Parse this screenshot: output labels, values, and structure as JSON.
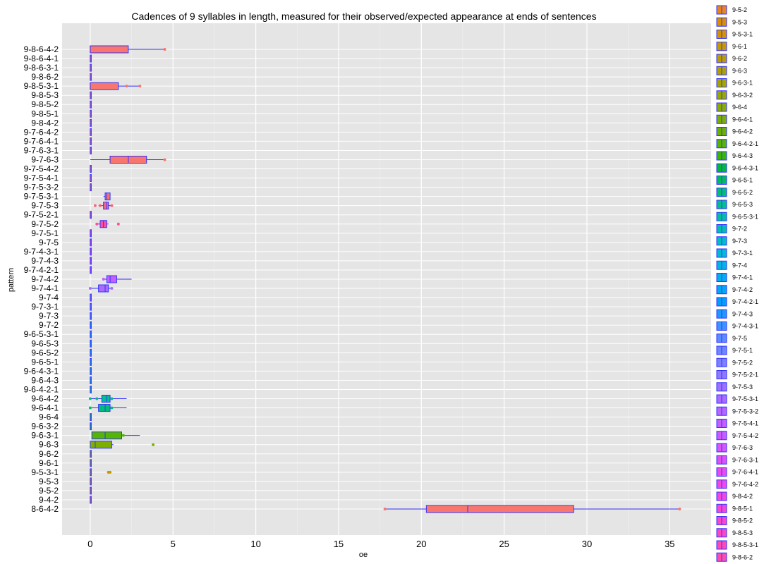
{
  "chart_data": {
    "type": "boxplot",
    "orientation": "horizontal",
    "title": "Cadences of 9 syllables in length, measured for their observed/expected appearance at ends of sentences",
    "xlabel": "oe",
    "ylabel": "pattern",
    "xlim": [
      -1.7,
      37.5
    ],
    "x_ticks": [
      0,
      5,
      10,
      15,
      20,
      25,
      30,
      35
    ],
    "grid": true,
    "legend_position": "right",
    "categories": [
      "8-6-4-2",
      "9-4-2",
      "9-5-2",
      "9-5-3",
      "9-5-3-1",
      "9-6-1",
      "9-6-2",
      "9-6-3",
      "9-6-3-1",
      "9-6-3-2",
      "9-6-4",
      "9-6-4-1",
      "9-6-4-2",
      "9-6-4-2-1",
      "9-6-4-3",
      "9-6-4-3-1",
      "9-6-5-1",
      "9-6-5-2",
      "9-6-5-3",
      "9-6-5-3-1",
      "9-7-2",
      "9-7-3",
      "9-7-3-1",
      "9-7-4",
      "9-7-4-1",
      "9-7-4-2",
      "9-7-4-2-1",
      "9-7-4-3",
      "9-7-4-3-1",
      "9-7-5",
      "9-7-5-1",
      "9-7-5-2",
      "9-7-5-2-1",
      "9-7-5-3",
      "9-7-5-3-1",
      "9-7-5-3-2",
      "9-7-5-4-1",
      "9-7-5-4-2",
      "9-7-6-3",
      "9-7-6-3-1",
      "9-7-6-4-1",
      "9-7-6-4-2",
      "9-8-4-2",
      "9-8-5-1",
      "9-8-5-2",
      "9-8-5-3",
      "9-8-5-3-1",
      "9-8-6-2",
      "9-8-6-3-1",
      "9-8-6-4-1",
      "9-8-6-4-2"
    ],
    "colors": [
      "#f8766d",
      "#f3794c",
      "#e7851e",
      "#d89000",
      "#c49a00",
      "#b0a100",
      "#99a800",
      "#7daf00",
      "#55b500",
      "#00ba38",
      "#00bc5c",
      "#00be76",
      "#00c08b",
      "#00c19f",
      "#00c0b1",
      "#00bec3",
      "#00bbd3",
      "#00b6e0",
      "#00b0ec",
      "#00a9f4",
      "#009ff9",
      "#3b94ff",
      "#6d87ff",
      "#9178ff",
      "#ad6aff",
      "#c55eff",
      "#d855f6",
      "#e94bea",
      "#f446db",
      "#fb46c9",
      "#ff49b4",
      "#ff509e",
      "#ff5a88",
      "#fc6579",
      "#f8766d",
      "#f8766d",
      "#f8766d",
      "#f8766d",
      "#f8766d",
      "#f8766d",
      "#f8766d",
      "#f8766d",
      "#f8766d",
      "#f8766d",
      "#f8766d",
      "#f8766d",
      "#f8766d",
      "#f8766d",
      "#f8766d",
      "#f8766d",
      "#f8766d"
    ],
    "boxes": {
      "8-6-4-2": {
        "min": 17.8,
        "q1": 20.3,
        "median": 22.8,
        "q3": 29.2,
        "max": 35.6,
        "outliers": [
          17.8,
          35.6
        ]
      },
      "9-4-2": {
        "min": 0,
        "q1": 0,
        "median": 0,
        "q3": 0,
        "max": 0,
        "outliers": []
      },
      "9-5-2": {
        "min": 0,
        "q1": 0,
        "median": 0,
        "q3": 0,
        "max": 0,
        "outliers": []
      },
      "9-5-3": {
        "min": 0,
        "q1": 0,
        "median": 0,
        "q3": 0,
        "max": 0,
        "outliers": []
      },
      "9-5-3-1": {
        "min": 0,
        "q1": 0,
        "median": 0,
        "q3": 0,
        "max": 0,
        "outliers": [
          1.1,
          1.2
        ]
      },
      "9-6-1": {
        "min": 0,
        "q1": 0,
        "median": 0,
        "q3": 0,
        "max": 0,
        "outliers": []
      },
      "9-6-2": {
        "min": 0,
        "q1": 0,
        "median": 0,
        "q3": 0,
        "max": 0,
        "outliers": []
      },
      "9-6-3": {
        "min": 0,
        "q1": 0,
        "median": 0.3,
        "q3": 1.3,
        "max": 1.4,
        "outliers": [
          3.8
        ]
      },
      "9-6-3-1": {
        "min": 0.1,
        "q1": 0.1,
        "median": 0.9,
        "q3": 1.9,
        "max": 3.0,
        "outliers": [
          2.0
        ]
      },
      "9-6-3-2": {
        "min": 0,
        "q1": 0,
        "median": 0,
        "q3": 0,
        "max": 0,
        "outliers": []
      },
      "9-6-4": {
        "min": 0,
        "q1": 0,
        "median": 0,
        "q3": 0,
        "max": 0,
        "outliers": []
      },
      "9-6-4-1": {
        "min": 0,
        "q1": 0.5,
        "median": 0.9,
        "q3": 1.2,
        "max": 2.2,
        "outliers": [
          0.0,
          1.3
        ]
      },
      "9-6-4-2": {
        "min": 0,
        "q1": 0.7,
        "median": 1.0,
        "q3": 1.2,
        "max": 2.2,
        "outliers": [
          0.0,
          0.4,
          1.3
        ]
      },
      "9-6-4-2-1": {
        "min": 0,
        "q1": 0,
        "median": 0,
        "q3": 0,
        "max": 0,
        "outliers": []
      },
      "9-6-4-3": {
        "min": 0,
        "q1": 0,
        "median": 0,
        "q3": 0,
        "max": 0,
        "outliers": []
      },
      "9-6-4-3-1": {
        "min": 0,
        "q1": 0,
        "median": 0,
        "q3": 0,
        "max": 0,
        "outliers": []
      },
      "9-6-5-1": {
        "min": 0,
        "q1": 0,
        "median": 0,
        "q3": 0,
        "max": 0,
        "outliers": []
      },
      "9-6-5-2": {
        "min": 0,
        "q1": 0,
        "median": 0,
        "q3": 0,
        "max": 0,
        "outliers": []
      },
      "9-6-5-3": {
        "min": 0,
        "q1": 0,
        "median": 0,
        "q3": 0,
        "max": 0,
        "outliers": []
      },
      "9-6-5-3-1": {
        "min": 0,
        "q1": 0,
        "median": 0,
        "q3": 0,
        "max": 0,
        "outliers": []
      },
      "9-7-2": {
        "min": 0,
        "q1": 0,
        "median": 0,
        "q3": 0,
        "max": 0,
        "outliers": []
      },
      "9-7-3": {
        "min": 0,
        "q1": 0,
        "median": 0,
        "q3": 0,
        "max": 0,
        "outliers": []
      },
      "9-7-3-1": {
        "min": 0,
        "q1": 0,
        "median": 0,
        "q3": 0,
        "max": 0,
        "outliers": []
      },
      "9-7-4": {
        "min": 0,
        "q1": 0,
        "median": 0,
        "q3": 0,
        "max": 0,
        "outliers": []
      },
      "9-7-4-1": {
        "min": 0,
        "q1": 0.5,
        "median": 0.9,
        "q3": 1.1,
        "max": 1.3,
        "outliers": [
          0.0,
          1.3
        ]
      },
      "9-7-4-2": {
        "min": 0.8,
        "q1": 1.0,
        "median": 1.2,
        "q3": 1.6,
        "max": 2.5,
        "outliers": [
          0.8
        ]
      },
      "9-7-4-2-1": {
        "min": 0,
        "q1": 0,
        "median": 0,
        "q3": 0,
        "max": 0,
        "outliers": []
      },
      "9-7-4-3": {
        "min": 0,
        "q1": 0,
        "median": 0,
        "q3": 0,
        "max": 0,
        "outliers": []
      },
      "9-7-4-3-1": {
        "min": 0,
        "q1": 0,
        "median": 0,
        "q3": 0,
        "max": 0,
        "outliers": []
      },
      "9-7-5": {
        "min": 0,
        "q1": 0,
        "median": 0,
        "q3": 0,
        "max": 0,
        "outliers": []
      },
      "9-7-5-1": {
        "min": 0,
        "q1": 0,
        "median": 0,
        "q3": 0,
        "max": 0,
        "outliers": []
      },
      "9-7-5-2": {
        "min": 0.4,
        "q1": 0.6,
        "median": 0.8,
        "q3": 1.0,
        "max": 1.1,
        "outliers": [
          0.4,
          1.7
        ]
      },
      "9-7-5-2-1": {
        "min": 0,
        "q1": 0,
        "median": 0,
        "q3": 0,
        "max": 0,
        "outliers": []
      },
      "9-7-5-3": {
        "min": 0.5,
        "q1": 0.8,
        "median": 1.0,
        "q3": 1.1,
        "max": 1.3,
        "outliers": [
          0.3,
          0.6,
          1.3
        ]
      },
      "9-7-5-3-1": {
        "min": 0.8,
        "q1": 0.9,
        "median": 1.0,
        "q3": 1.2,
        "max": 1.2,
        "outliers": []
      },
      "9-7-5-3-2": {
        "min": 0,
        "q1": 0,
        "median": 0,
        "q3": 0,
        "max": 0,
        "outliers": []
      },
      "9-7-5-4-1": {
        "min": 0,
        "q1": 0,
        "median": 0,
        "q3": 0,
        "max": 0,
        "outliers": []
      },
      "9-7-5-4-2": {
        "min": 0,
        "q1": 0,
        "median": 0,
        "q3": 0,
        "max": 0,
        "outliers": []
      },
      "9-7-6-3": {
        "min": 0,
        "q1": 1.2,
        "median": 2.3,
        "q3": 3.4,
        "max": 4.5,
        "outliers": [
          4.5
        ]
      },
      "9-7-6-3-1": {
        "min": 0,
        "q1": 0,
        "median": 0,
        "q3": 0,
        "max": 0,
        "outliers": []
      },
      "9-7-6-4-1": {
        "min": 0,
        "q1": 0,
        "median": 0,
        "q3": 0,
        "max": 0,
        "outliers": []
      },
      "9-7-6-4-2": {
        "min": 0,
        "q1": 0,
        "median": 0,
        "q3": 0,
        "max": 0,
        "outliers": []
      },
      "9-8-4-2": {
        "min": 0,
        "q1": 0,
        "median": 0,
        "q3": 0,
        "max": 0,
        "outliers": []
      },
      "9-8-5-1": {
        "min": 0,
        "q1": 0,
        "median": 0,
        "q3": 0,
        "max": 0,
        "outliers": []
      },
      "9-8-5-2": {
        "min": 0,
        "q1": 0,
        "median": 0,
        "q3": 0,
        "max": 0,
        "outliers": []
      },
      "9-8-5-3": {
        "min": 0,
        "q1": 0,
        "median": 0,
        "q3": 0,
        "max": 0,
        "outliers": []
      },
      "9-8-5-3-1": {
        "min": 0,
        "q1": 0,
        "median": 0,
        "q3": 1.7,
        "max": 3.0,
        "outliers": [
          2.2,
          3.0
        ]
      },
      "9-8-6-2": {
        "min": 0,
        "q1": 0,
        "median": 0,
        "q3": 0,
        "max": 0,
        "outliers": []
      },
      "9-8-6-3-1": {
        "min": 0,
        "q1": 0,
        "median": 0,
        "q3": 0,
        "max": 0,
        "outliers": []
      },
      "9-8-6-4-1": {
        "min": 0,
        "q1": 0,
        "median": 0,
        "q3": 0,
        "max": 0,
        "outliers": []
      },
      "9-8-6-4-2": {
        "min": 0,
        "q1": 0,
        "median": 0,
        "q3": 2.3,
        "max": 4.5,
        "outliers": [
          4.5
        ]
      }
    },
    "legend_entries": [
      "9-5-2",
      "9-5-3",
      "9-5-3-1",
      "9-6-1",
      "9-6-2",
      "9-6-3",
      "9-6-3-1",
      "9-6-3-2",
      "9-6-4",
      "9-6-4-1",
      "9-6-4-2",
      "9-6-4-2-1",
      "9-6-4-3",
      "9-6-4-3-1",
      "9-6-5-1",
      "9-6-5-2",
      "9-6-5-3",
      "9-6-5-3-1",
      "9-7-2",
      "9-7-3",
      "9-7-3-1",
      "9-7-4",
      "9-7-4-1",
      "9-7-4-2",
      "9-7-4-2-1",
      "9-7-4-3",
      "9-7-4-3-1",
      "9-7-5",
      "9-7-5-1",
      "9-7-5-2",
      "9-7-5-2-1",
      "9-7-5-3",
      "9-7-5-3-1",
      "9-7-5-3-2",
      "9-7-5-4-1",
      "9-7-5-4-2",
      "9-7-6-3",
      "9-7-6-3-1",
      "9-7-6-4-1",
      "9-7-6-4-2",
      "9-8-4-2",
      "9-8-5-1",
      "9-8-5-2",
      "9-8-5-3",
      "9-8-5-3-1",
      "9-8-6-2"
    ],
    "legend_colors": [
      "#e7851e",
      "#d89000",
      "#d39200",
      "#c49a00",
      "#b89e00",
      "#b0a100",
      "#a5a400",
      "#99a800",
      "#8cab00",
      "#7daf00",
      "#6bb100",
      "#55b500",
      "#3ab700",
      "#00ba38",
      "#00bc5c",
      "#00be76",
      "#00c08b",
      "#00c19f",
      "#00c0b1",
      "#00bec3",
      "#00bbd3",
      "#00b6e0",
      "#00b0ec",
      "#00a9f4",
      "#009ff9",
      "#1e99fc",
      "#3b94ff",
      "#5a8dff",
      "#6d87ff",
      "#7f80ff",
      "#9178ff",
      "#9f71ff",
      "#ad6aff",
      "#b964ff",
      "#c55eff",
      "#ce59fb",
      "#d855f6",
      "#e14ff0",
      "#e94bea",
      "#ef49e2",
      "#f446db",
      "#f946d2",
      "#fb46c9",
      "#fd47bf",
      "#ff49b4",
      "#ff4ca9"
    ]
  }
}
